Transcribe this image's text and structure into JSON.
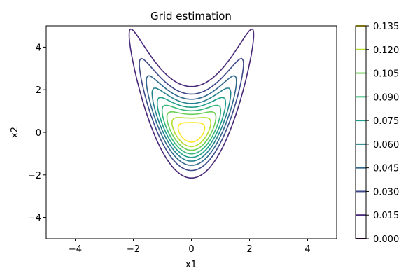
{
  "chart_data": {
    "type": "contour",
    "title": "Grid estimation",
    "xlabel": "x1",
    "ylabel": "x2",
    "xlim": [
      -5,
      5
    ],
    "ylim": [
      -5,
      5
    ],
    "x_ticks": [
      -4,
      -2,
      0,
      2,
      4
    ],
    "y_ticks": [
      -4,
      -2,
      0,
      2,
      4
    ],
    "contour_levels": [
      0.0,
      0.015,
      0.03,
      0.045,
      0.06,
      0.075,
      0.09,
      0.105,
      0.12,
      0.135
    ],
    "colorbar_tick_labels": [
      "0.000",
      "0.015",
      "0.030",
      "0.045",
      "0.060",
      "0.075",
      "0.090",
      "0.105",
      "0.120",
      "0.135"
    ],
    "level_colors": [
      "#440154",
      "#482878",
      "#3e4989",
      "#31688e",
      "#26828e",
      "#1f9e89",
      "#35b779",
      "#6ece58",
      "#b5de2b",
      "#fde725"
    ],
    "grid": false,
    "legend": "colorbar-right"
  }
}
